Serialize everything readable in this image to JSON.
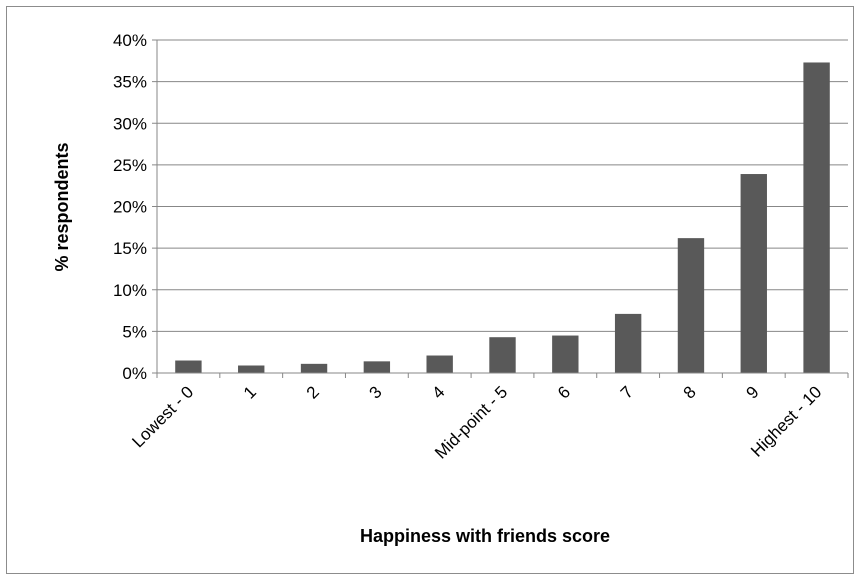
{
  "chart_data": {
    "type": "bar",
    "title": "",
    "xlabel": "Happiness with friends score",
    "ylabel": "% respondents",
    "categories": [
      "Lowest - 0",
      "1",
      "2",
      "3",
      "4",
      "Mid-point - 5",
      "6",
      "7",
      "8",
      "9",
      "Highest - 10"
    ],
    "values": [
      1.5,
      0.9,
      1.1,
      1.4,
      2.1,
      4.3,
      4.5,
      7.1,
      16.2,
      23.9,
      37.3
    ],
    "ylim": [
      0,
      40
    ],
    "yticks": [
      "0%",
      "5%",
      "10%",
      "15%",
      "20%",
      "25%",
      "30%",
      "35%",
      "40%"
    ],
    "ytick_values": [
      0,
      5,
      10,
      15,
      20,
      25,
      30,
      35,
      40
    ],
    "grid": true,
    "legend": "none",
    "bar_color": "#595959",
    "grid_color": "#878787"
  }
}
